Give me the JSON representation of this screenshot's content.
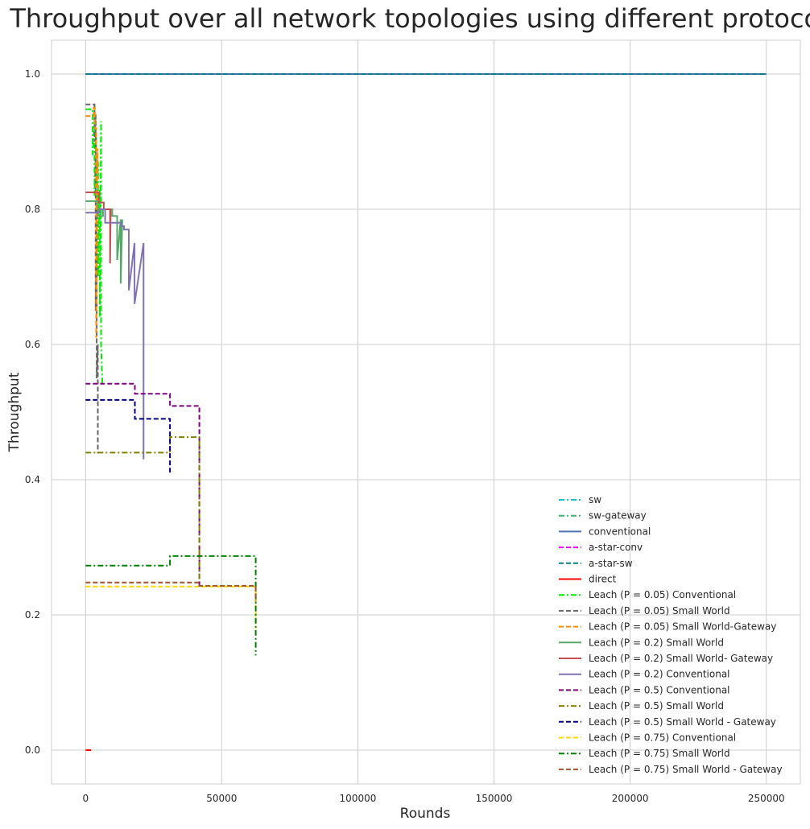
{
  "chart_data": {
    "type": "line",
    "title": "Throughput over all network topologies using different protocols",
    "xlabel": "Rounds",
    "ylabel": "Throughput",
    "xlim": [
      -12500,
      262500
    ],
    "ylim": [
      -0.05,
      1.05
    ],
    "xticks": [
      0,
      50000,
      100000,
      150000,
      200000,
      250000
    ],
    "yticks": [
      0.0,
      0.2,
      0.4,
      0.6,
      0.8,
      1.0
    ],
    "xtick_labels": [
      "0",
      "50000",
      "100000",
      "150000",
      "200000",
      "250000"
    ],
    "ytick_labels": [
      "0.0",
      "0.2",
      "0.4",
      "0.6",
      "0.8",
      "1.0"
    ],
    "grid": true,
    "legend_position": "lower right",
    "series": [
      {
        "name": "sw",
        "color": "#17becf",
        "dash": "dashdot",
        "x": [
          0,
          250000
        ],
        "y": [
          1.0,
          1.0
        ]
      },
      {
        "name": "sw-gateway",
        "color": "#3cb371",
        "dash": "dashdot",
        "x": [
          0,
          250000
        ],
        "y": [
          1.0,
          1.0
        ]
      },
      {
        "name": "conventional",
        "color": "#4c72b0",
        "dash": "solid",
        "x": [
          0,
          250000
        ],
        "y": [
          1.0,
          1.0
        ]
      },
      {
        "name": "a-star-conv",
        "color": "#ff00ff",
        "dash": "dashed",
        "x": [
          0,
          250000
        ],
        "y": [
          1.0,
          1.0
        ]
      },
      {
        "name": "a-star-sw",
        "color": "#008080",
        "dash": "dashed",
        "x": [
          0,
          250000
        ],
        "y": [
          1.0,
          1.0
        ]
      },
      {
        "name": "direct",
        "color": "#ff0000",
        "dash": "solid",
        "x": [
          0,
          2000
        ],
        "y": [
          0.0,
          0.0
        ]
      },
      {
        "name": "Leach (P = 0.05) Conventional",
        "color": "#00ee00",
        "dash": "dashdot",
        "x": [
          0,
          2600,
          2600,
          3300,
          3300,
          3900,
          3900,
          4600,
          4600,
          5200,
          5200,
          5700,
          5700,
          6200
        ],
        "y": [
          0.948,
          0.948,
          0.88,
          0.93,
          0.82,
          0.91,
          0.75,
          0.87,
          0.7,
          0.83,
          0.64,
          0.93,
          0.6,
          0.54
        ]
      },
      {
        "name": "Leach (P = 0.05) Small World",
        "color": "#666666",
        "dash": "dashed",
        "x": [
          0,
          3300,
          3300,
          3700,
          3700,
          4100,
          4100,
          4500,
          4500,
          5000
        ],
        "y": [
          0.955,
          0.955,
          0.9,
          0.94,
          0.65,
          0.8,
          0.55,
          0.6,
          0.44,
          0.44
        ]
      },
      {
        "name": "Leach (P = 0.05) Small World-Gateway",
        "color": "#ff8c00",
        "dash": "dashed",
        "x": [
          0,
          3000,
          3000,
          3400,
          3400,
          3900,
          3900,
          4400,
          4400
        ],
        "y": [
          0.938,
          0.938,
          0.95,
          0.95,
          0.92,
          0.92,
          0.61,
          0.89,
          0.86
        ]
      },
      {
        "name": "Leach (P = 0.2) Small World",
        "color": "#55a868",
        "dash": "solid",
        "x": [
          0,
          4600,
          4600,
          6400,
          6400,
          9800,
          9800,
          11600,
          11600,
          12900,
          12900,
          13500
        ],
        "y": [
          0.812,
          0.812,
          0.79,
          0.79,
          0.8,
          0.8,
          0.79,
          0.79,
          0.725,
          0.785,
          0.69,
          0.785
        ]
      },
      {
        "name": "Leach (P = 0.2) Small World- Gateway",
        "color": "#c44e52",
        "dash": "solid",
        "x": [
          0,
          4900,
          4900,
          6700,
          6700,
          9000,
          9000,
          9200
        ],
        "y": [
          0.825,
          0.825,
          0.81,
          0.81,
          0.8,
          0.8,
          0.72,
          0.8
        ]
      },
      {
        "name": "Leach (P = 0.2) Conventional",
        "color": "#8172b2",
        "dash": "solid",
        "x": [
          0,
          5200,
          5200,
          7200,
          7200,
          9200,
          9200,
          13100,
          13100,
          14100,
          14100,
          15900,
          15900,
          18000,
          18000,
          21300,
          21300
        ],
        "y": [
          0.795,
          0.795,
          0.8,
          0.8,
          0.78,
          0.78,
          0.78,
          0.78,
          0.775,
          0.775,
          0.77,
          0.77,
          0.68,
          0.75,
          0.66,
          0.75,
          0.43
        ]
      },
      {
        "name": "Leach (P = 0.5) Conventional",
        "color": "#800080",
        "dash": "dashed",
        "x": [
          0,
          18100,
          18100,
          31000,
          31000,
          41800,
          41800
        ],
        "y": [
          0.542,
          0.542,
          0.527,
          0.527,
          0.509,
          0.509,
          0.24
        ]
      },
      {
        "name": "Leach (P = 0.5) Small World",
        "color": "#808000",
        "dash": "dashdot",
        "x": [
          0,
          31000,
          31000,
          41800,
          41800
        ],
        "y": [
          0.44,
          0.44,
          0.463,
          0.463,
          0.25
        ]
      },
      {
        "name": "Leach (P = 0.5) Small World - Gateway",
        "color": "#000080",
        "dash": "dashed",
        "x": [
          0,
          18100,
          18100,
          31000,
          31000
        ],
        "y": [
          0.518,
          0.518,
          0.49,
          0.49,
          0.41
        ]
      },
      {
        "name": "Leach (P = 0.75) Conventional",
        "color": "#ffd700",
        "dash": "dashed",
        "x": [
          0,
          62500,
          62500
        ],
        "y": [
          0.242,
          0.242,
          0.18
        ]
      },
      {
        "name": "Leach (P = 0.75) Small World",
        "color": "#008000",
        "dash": "dashdot",
        "x": [
          0,
          31000,
          31000,
          62500,
          62500
        ],
        "y": [
          0.273,
          0.273,
          0.287,
          0.287,
          0.14
        ]
      },
      {
        "name": "Leach (P = 0.75) Small World - Gateway",
        "color": "#a0522d",
        "dash": "dashed",
        "x": [
          0,
          41800,
          41800,
          62500,
          62500
        ],
        "y": [
          0.248,
          0.248,
          0.243,
          0.243,
          0.22
        ]
      }
    ]
  }
}
